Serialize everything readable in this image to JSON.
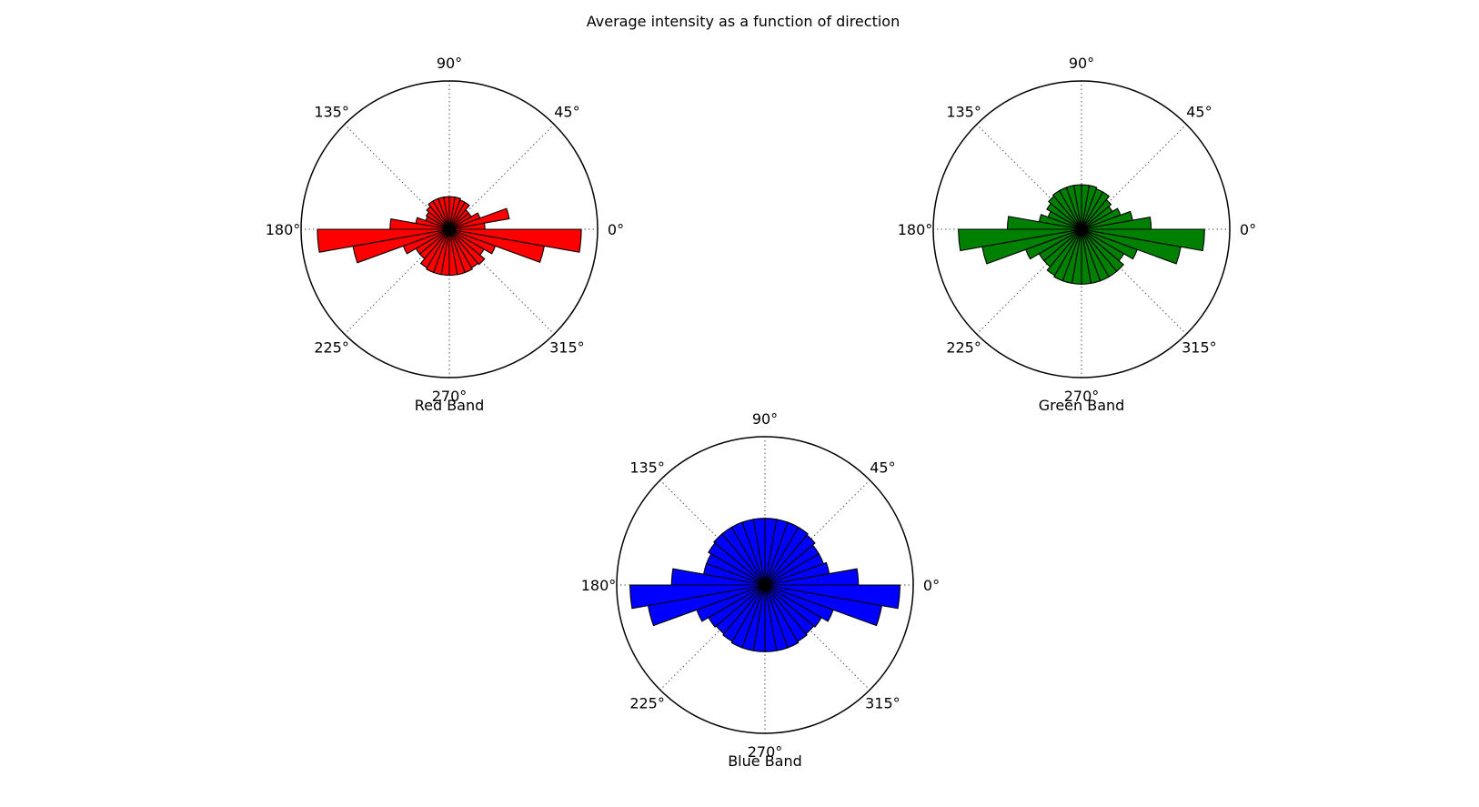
{
  "figure": {
    "title": "Average intensity as a function of direction"
  },
  "chart_data": [
    {
      "type": "polar-bar",
      "xlabel": "Red Band",
      "color": "#ff0000",
      "edge_color": "#000000",
      "theta_unit": "degrees",
      "theta_ticks": [
        "0°",
        "45°",
        "90°",
        "135°",
        "180°",
        "225°",
        "270°",
        "315°"
      ],
      "rlim": [
        0,
        1
      ],
      "grid": true,
      "bin_width": 10,
      "bins_start": [
        0,
        10,
        20,
        30,
        40,
        50,
        60,
        70,
        80,
        90,
        100,
        110,
        120,
        130,
        140,
        150,
        160,
        170,
        180,
        190,
        200,
        210,
        220,
        230,
        240,
        250,
        260,
        270,
        280,
        290,
        300,
        310,
        320,
        330,
        340,
        350
      ],
      "values": [
        0.24,
        0.41,
        0.22,
        0.17,
        0.17,
        0.21,
        0.21,
        0.22,
        0.22,
        0.22,
        0.22,
        0.22,
        0.22,
        0.2,
        0.18,
        0.17,
        0.23,
        0.4,
        0.89,
        0.66,
        0.33,
        0.26,
        0.26,
        0.3,
        0.31,
        0.31,
        0.31,
        0.31,
        0.31,
        0.31,
        0.3,
        0.31,
        0.27,
        0.33,
        0.65,
        0.89
      ]
    },
    {
      "type": "polar-bar",
      "xlabel": "Green Band",
      "color": "#008000",
      "edge_color": "#000000",
      "theta_unit": "degrees",
      "theta_ticks": [
        "0°",
        "45°",
        "90°",
        "135°",
        "180°",
        "225°",
        "270°",
        "315°"
      ],
      "rlim": [
        0,
        1
      ],
      "grid": true,
      "bin_width": 10,
      "bins_start": [
        0,
        10,
        20,
        30,
        40,
        50,
        60,
        70,
        80,
        90,
        100,
        110,
        120,
        130,
        140,
        150,
        160,
        170,
        180,
        190,
        200,
        210,
        220,
        230,
        240,
        250,
        260,
        270,
        280,
        290,
        300,
        310,
        320,
        330,
        340,
        350
      ],
      "values": [
        0.47,
        0.35,
        0.28,
        0.24,
        0.26,
        0.29,
        0.29,
        0.3,
        0.3,
        0.3,
        0.3,
        0.3,
        0.3,
        0.29,
        0.27,
        0.24,
        0.29,
        0.5,
        0.83,
        0.68,
        0.4,
        0.33,
        0.33,
        0.36,
        0.37,
        0.37,
        0.37,
        0.37,
        0.37,
        0.37,
        0.37,
        0.37,
        0.33,
        0.4,
        0.68,
        0.83
      ]
    },
    {
      "type": "polar-bar",
      "xlabel": "Blue Band",
      "color": "#0000ff",
      "edge_color": "#000000",
      "theta_unit": "degrees",
      "theta_ticks": [
        "0°",
        "45°",
        "90°",
        "135°",
        "180°",
        "225°",
        "270°",
        "315°"
      ],
      "rlim": [
        0,
        1
      ],
      "grid": true,
      "bin_width": 10,
      "bins_start": [
        0,
        10,
        20,
        30,
        40,
        50,
        60,
        70,
        80,
        90,
        100,
        110,
        120,
        130,
        140,
        150,
        160,
        170,
        180,
        190,
        200,
        210,
        220,
        230,
        240,
        250,
        260,
        270,
        280,
        290,
        300,
        310,
        320,
        330,
        340,
        350
      ],
      "values": [
        0.63,
        0.44,
        0.42,
        0.42,
        0.44,
        0.45,
        0.45,
        0.45,
        0.45,
        0.45,
        0.45,
        0.45,
        0.45,
        0.45,
        0.44,
        0.42,
        0.42,
        0.63,
        0.91,
        0.8,
        0.49,
        0.44,
        0.43,
        0.44,
        0.45,
        0.45,
        0.45,
        0.45,
        0.45,
        0.45,
        0.44,
        0.43,
        0.44,
        0.49,
        0.8,
        0.91
      ]
    }
  ]
}
